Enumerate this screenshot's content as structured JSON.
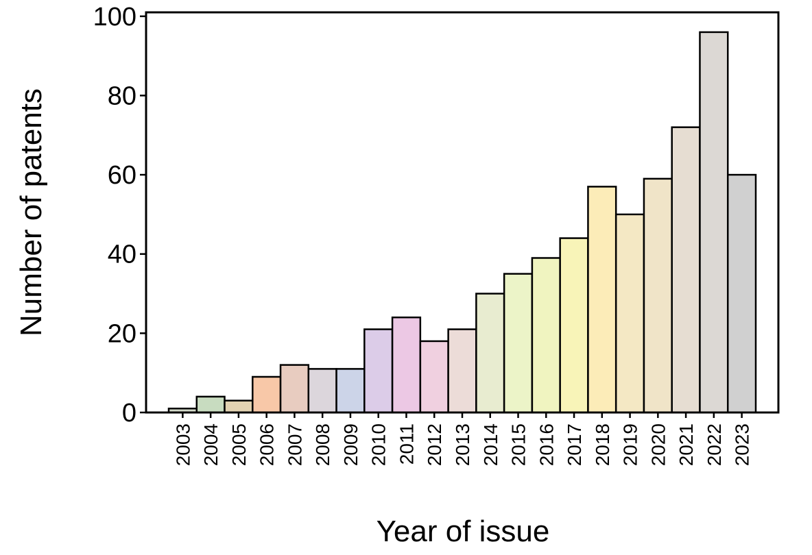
{
  "chart_data": {
    "type": "bar",
    "x_label": "Year of issue",
    "y_label": "Number of patents",
    "categories": [
      "2003",
      "2004",
      "2005",
      "2006",
      "2007",
      "2008",
      "2009",
      "2010",
      "2011",
      "2012",
      "2013",
      "2014",
      "2015",
      "2016",
      "2017",
      "2018",
      "2019",
      "2020",
      "2021",
      "2022",
      "2023"
    ],
    "values": [
      1,
      4,
      3,
      9,
      12,
      11,
      11,
      21,
      24,
      18,
      21,
      30,
      35,
      39,
      44,
      57,
      50,
      59,
      72,
      96,
      60
    ],
    "colors": [
      "#d2d8c8",
      "#c8dcc0",
      "#e2d2b2",
      "#f8c8a8",
      "#e8ccc0",
      "#dcd6dc",
      "#ccd4e8",
      "#dccce8",
      "#ecc8e4",
      "#f0d0e0",
      "#ecdcd8",
      "#e8ecd0",
      "#ecf4c8",
      "#f0f4c0",
      "#f8f4b8",
      "#fcecb8",
      "#f4e8c4",
      "#f0e4c8",
      "#e6ddd2",
      "#dcd8d4",
      "#d0d0d0"
    ],
    "ylim": [
      0,
      101
    ],
    "yticks": [
      0,
      20,
      40,
      60,
      80,
      100
    ]
  }
}
